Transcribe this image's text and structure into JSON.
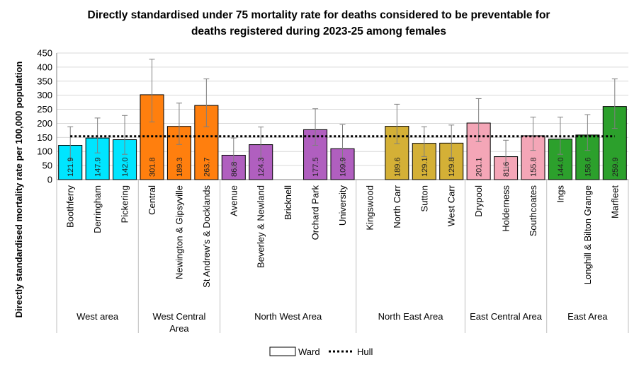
{
  "chart_data": {
    "type": "bar",
    "title_lines": [
      "Directly standardised under 75 mortality rate for deaths considered to be preventable for",
      "deaths registered during 2023-25 among females"
    ],
    "ylabel": "Directly standardised mortality rate per 100,000 population",
    "ylim": [
      0,
      450
    ],
    "yticks": [
      0,
      50,
      100,
      150,
      200,
      250,
      300,
      350,
      400,
      450
    ],
    "reference_line": {
      "name": "Hull",
      "value": 154
    },
    "legend": {
      "bar_label": "Ward",
      "line_label": "Hull",
      "position": "bottom"
    },
    "groups": [
      {
        "name_lines": [
          "West area"
        ],
        "color": "#00e5ff",
        "wards": [
          {
            "name": "Boothferry",
            "value": 121.9,
            "label": "121.9",
            "ci": [
              70,
              188
            ]
          },
          {
            "name": "Derringham",
            "value": 147.9,
            "label": "147.9",
            "ci": [
              95,
              219
            ]
          },
          {
            "name": "Pickering",
            "value": 142.0,
            "label": "142.0",
            "ci": [
              90,
              228
            ]
          }
        ]
      },
      {
        "name_lines": [
          "West Central",
          "Area"
        ],
        "color": "#ff7f0e",
        "wards": [
          {
            "name": "Central",
            "value": 301.8,
            "label": "301.8",
            "ci": [
              205,
              428
            ]
          },
          {
            "name": "Newington & Gipsyville",
            "value": 189.3,
            "label": "189.3",
            "ci": [
              125,
              272
            ]
          },
          {
            "name": "St Andrew's & Docklands",
            "value": 263.7,
            "label": "263.7",
            "ci": [
              188,
              358
            ]
          }
        ]
      },
      {
        "name_lines": [
          "North West Area"
        ],
        "color": "#b05fbf",
        "wards": [
          {
            "name": "Avenue",
            "value": 86.8,
            "label": "86.8",
            "ci": [
              45,
              148
            ]
          },
          {
            "name": "Beverley & Newland",
            "value": 124.3,
            "label": "124.3",
            "ci": [
              75,
              187
            ]
          },
          {
            "name": "Bricknell",
            "value": null,
            "label": "",
            "ci": null
          },
          {
            "name": "Orchard Park",
            "value": 177.5,
            "label": "177.5",
            "ci": [
              122,
              252
            ]
          },
          {
            "name": "University",
            "value": 109.9,
            "label": "109.9",
            "ci": [
              58,
              196
            ]
          }
        ]
      },
      {
        "name_lines": [
          "North East Area"
        ],
        "color": "#d4b036",
        "wards": [
          {
            "name": "Kingswood",
            "value": null,
            "label": "",
            "ci": null
          },
          {
            "name": "North Carr",
            "value": 189.6,
            "label": "189.6",
            "ci": [
              128,
              268
            ]
          },
          {
            "name": "Sutton",
            "value": 129.1,
            "label": "129.1",
            "ci": [
              82,
              188
            ]
          },
          {
            "name": "West Carr",
            "value": 129.8,
            "label": "129.8",
            "ci": [
              78,
              194
            ]
          }
        ]
      },
      {
        "name_lines": [
          "East Central Area"
        ],
        "color": "#f4a6b7",
        "wards": [
          {
            "name": "Drypool",
            "value": 201.1,
            "label": "201.1",
            "ci": [
              135,
              288
            ]
          },
          {
            "name": "Holderness",
            "value": 81.6,
            "label": "81.6",
            "ci": [
              42,
              140
            ]
          },
          {
            "name": "Southcoates",
            "value": 155.8,
            "label": "155.8",
            "ci": [
              104,
              222
            ]
          }
        ]
      },
      {
        "name_lines": [
          "East Area"
        ],
        "color": "#2ca02c",
        "wards": [
          {
            "name": "Ings",
            "value": 144.0,
            "label": "144.0",
            "ci": [
              90,
              222
            ]
          },
          {
            "name": "Longhill & Bilton Grange",
            "value": 158.6,
            "label": "158.6",
            "ci": [
              104,
              231
            ]
          },
          {
            "name": "Marfleet",
            "value": 259.9,
            "label": "259.9",
            "ci": [
              182,
              358
            ]
          }
        ]
      }
    ]
  }
}
